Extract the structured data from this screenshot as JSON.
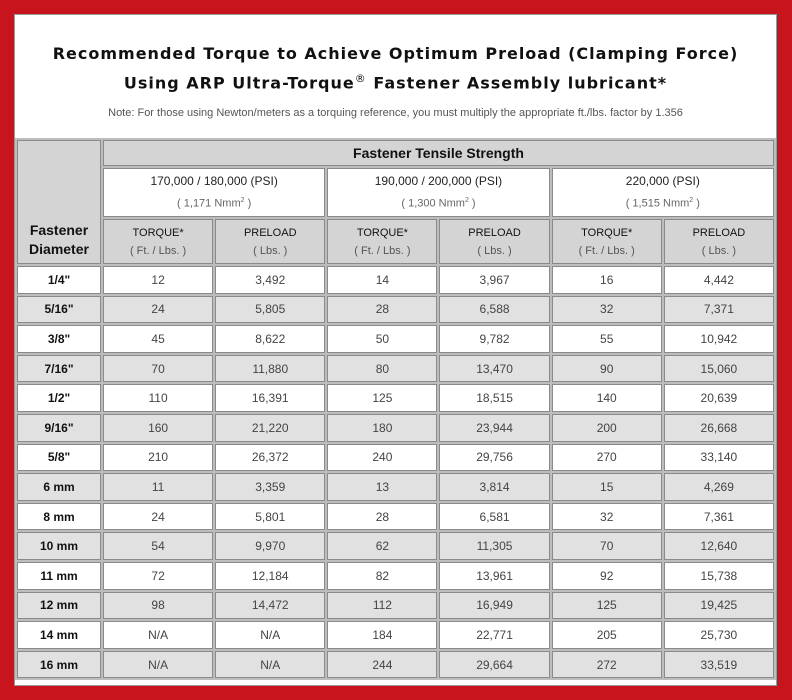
{
  "header": {
    "title_line1": "Recommended Torque to Achieve Optimum Preload (Clamping Force)",
    "title_line2_pre": "Using ARP Ultra-Torque",
    "title_line2_reg": "®",
    "title_line2_post": " Fastener Assembly lubricant*",
    "note": "Note: For those using Newton/meters as a torquing reference, you must multiply the appropriate ft./lbs. factor by 1.356"
  },
  "table": {
    "row_header": [
      "Fastener",
      "Diameter"
    ],
    "group_header": "Fastener Tensile Strength",
    "groups": [
      {
        "psi": "170,000 / 180,000 (PSI)",
        "nmm": "( 1,171 Nmm",
        "sup": "2"
      },
      {
        "psi": "190,000 / 200,000 (PSI)",
        "nmm": "( 1,300 Nmm",
        "sup": "2"
      },
      {
        "psi": "220,000 (PSI)",
        "nmm": "( 1,515 Nmm",
        "sup": "2"
      }
    ],
    "torque_label": "TORQUE*",
    "torque_unit": "( Ft. / Lbs. )",
    "preload_label": "PRELOAD",
    "preload_unit": "( Lbs. )",
    "rows": [
      [
        "1/4\"",
        "12",
        "3,492",
        "14",
        "3,967",
        "16",
        "4,442"
      ],
      [
        "5/16\"",
        "24",
        "5,805",
        "28",
        "6,588",
        "32",
        "7,371"
      ],
      [
        "3/8\"",
        "45",
        "8,622",
        "50",
        "9,782",
        "55",
        "10,942"
      ],
      [
        "7/16\"",
        "70",
        "11,880",
        "80",
        "13,470",
        "90",
        "15,060"
      ],
      [
        "1/2\"",
        "110",
        "16,391",
        "125",
        "18,515",
        "140",
        "20,639"
      ],
      [
        "9/16\"",
        "160",
        "21,220",
        "180",
        "23,944",
        "200",
        "26,668"
      ],
      [
        "5/8\"",
        "210",
        "26,372",
        "240",
        "29,756",
        "270",
        "33,140"
      ],
      [
        "6 mm",
        "11",
        "3,359",
        "13",
        "3,814",
        "15",
        "4,269"
      ],
      [
        "8 mm",
        "24",
        "5,801",
        "28",
        "6,581",
        "32",
        "7,361"
      ],
      [
        "10 mm",
        "54",
        "9,970",
        "62",
        "11,305",
        "70",
        "12,640"
      ],
      [
        "11 mm",
        "72",
        "12,184",
        "82",
        "13,961",
        "92",
        "15,738"
      ],
      [
        "12 mm",
        "98",
        "14,472",
        "112",
        "16,949",
        "125",
        "19,425"
      ],
      [
        "14 mm",
        "N/A",
        "N/A",
        "184",
        "22,771",
        "205",
        "25,730"
      ],
      [
        "16 mm",
        "N/A",
        "N/A",
        "244",
        "29,664",
        "272",
        "33,519"
      ]
    ]
  },
  "colors": {
    "border": "#c8141c",
    "header_bg": "#d4d4d4",
    "alt_row": "#e1e1e1"
  }
}
